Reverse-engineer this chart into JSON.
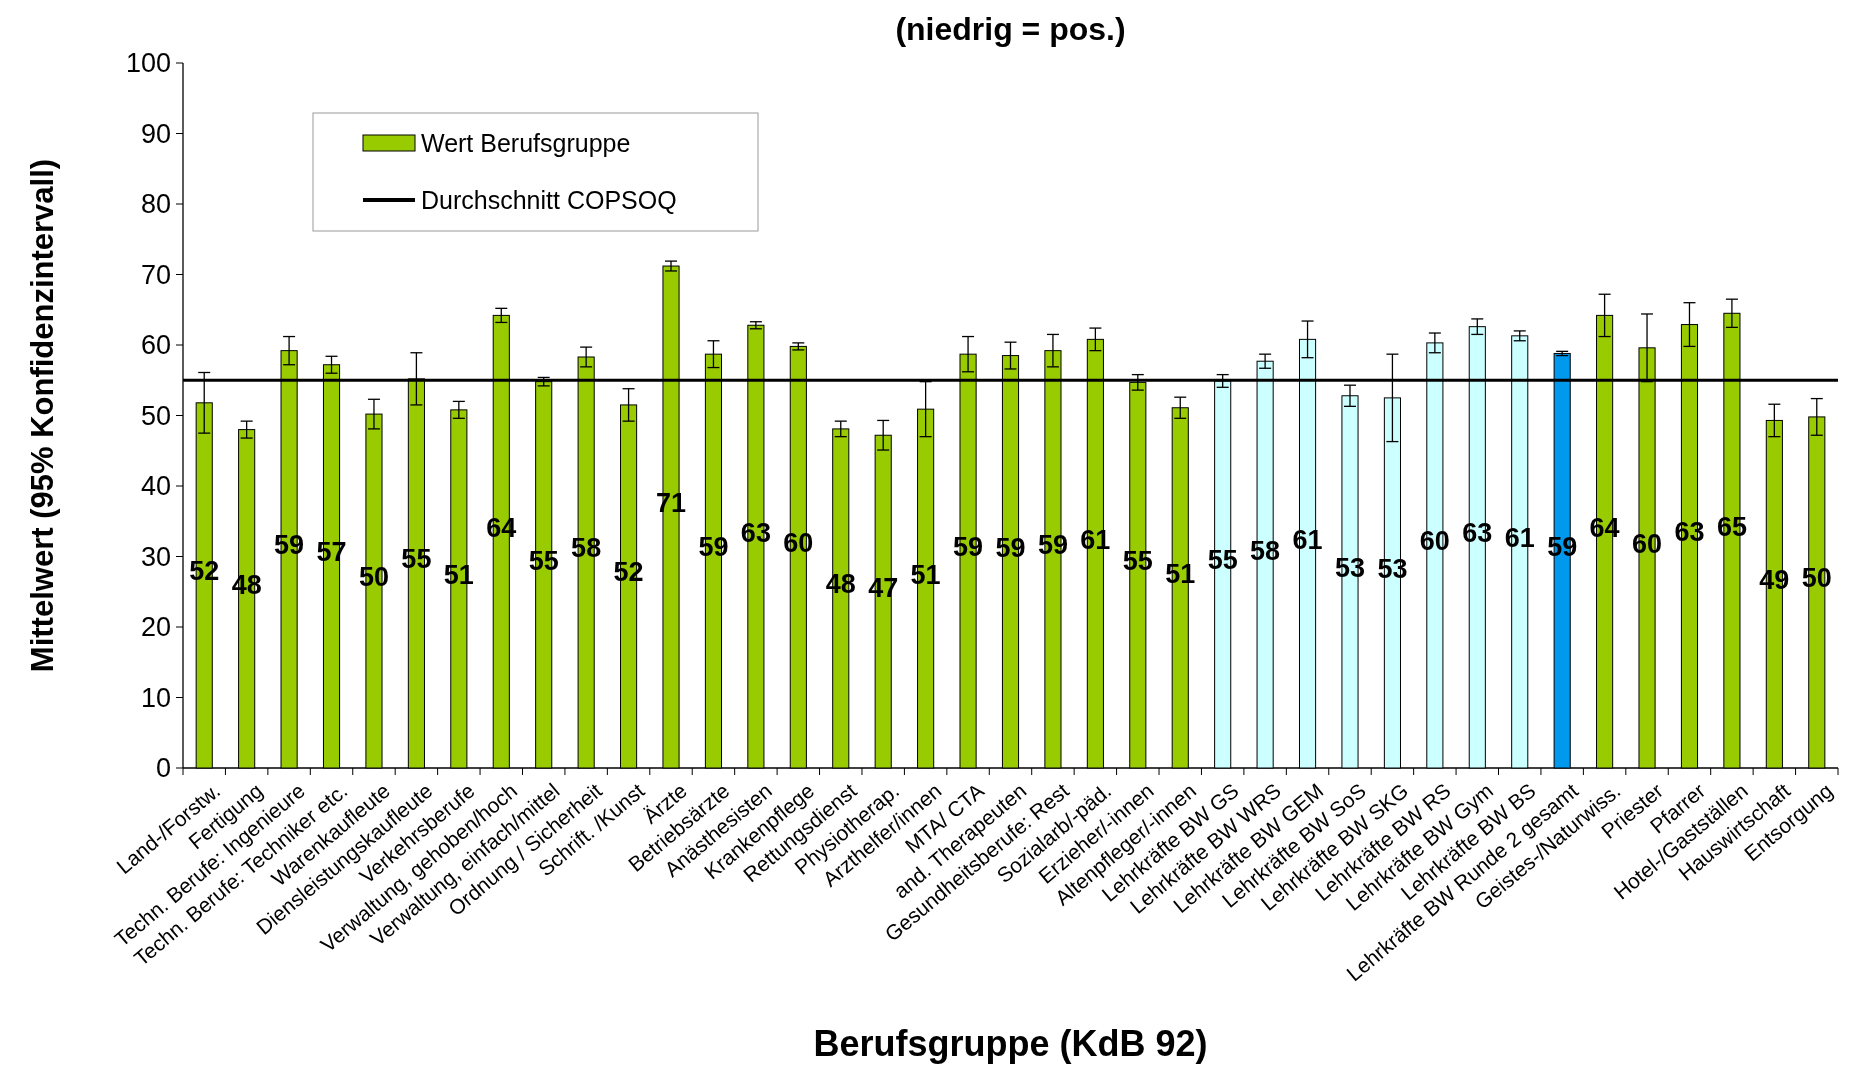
{
  "chart_data": {
    "type": "bar",
    "title": "(niedrig = pos.)",
    "xlabel": "Berufsgruppe (KdB 92)",
    "ylabel": "Mittelwert (95% Konfidenzintervall)",
    "categories": [
      "Land-/Forstw.",
      "Fertigung",
      "Techn. Berufe: Ingenieure",
      "Techn. Berufe: Techniker etc.",
      "Warenkaufleute",
      "Diensleistungskaufleute",
      "Verkehrsberufe",
      "Verwaltung, gehoben/hoch",
      "Verwaltung, einfach/mittel",
      "Ordnung / Sicherheit",
      "Schrift. /Kunst",
      "Ärzte",
      "Betriebsärzte",
      "Anästhesisten",
      "Krankenpflege",
      "Rettungsdienst",
      "Physiotherap.",
      "Arzthelfer/innen",
      "MTA/ CTA",
      "and. Therapeuten",
      "Gesundheitsberufe: Rest",
      "Sozialarb/-päd.",
      "Erzieher/-innen",
      "Altenpfleger/-innen",
      "Lehrkräfte BW GS",
      "Lehrkräfte BW WRS",
      "Lehrkräfte BW GEM",
      "Lehrkräfte BW SoS",
      "Lehrkräfte BW SKG",
      "Lehrkräfte BW RS",
      "Lehrkräfte BW Gym",
      "Lehrkräfte BW BS",
      "Lehrkräfte BW Runde 2 gesamt",
      "Geistes-/Naturwiss.",
      "Priester",
      "Pfarrer",
      "Hotel-/Gastställen",
      "Hauswirtschaft",
      "Entsorgung"
    ],
    "series": [
      {
        "name": "Wert Berufsgruppe",
        "color": "#99cc00",
        "colors": [
          "#99cc00",
          "#99cc00",
          "#99cc00",
          "#99cc00",
          "#99cc00",
          "#99cc00",
          "#99cc00",
          "#99cc00",
          "#99cc00",
          "#99cc00",
          "#99cc00",
          "#99cc00",
          "#99cc00",
          "#99cc00",
          "#99cc00",
          "#99cc00",
          "#99cc00",
          "#99cc00",
          "#99cc00",
          "#99cc00",
          "#99cc00",
          "#99cc00",
          "#99cc00",
          "#99cc00",
          "#ccffff",
          "#ccffff",
          "#ccffff",
          "#ccffff",
          "#ccffff",
          "#ccffff",
          "#ccffff",
          "#ccffff",
          "#0099ee",
          "#99cc00",
          "#99cc00",
          "#99cc00",
          "#99cc00",
          "#99cc00",
          "#99cc00"
        ],
        "values": [
          51.8,
          48.0,
          59.2,
          57.2,
          50.2,
          55.2,
          50.8,
          64.2,
          54.8,
          58.3,
          51.5,
          71.2,
          58.7,
          62.8,
          59.8,
          48.1,
          47.2,
          50.9,
          58.7,
          58.5,
          59.2,
          60.8,
          54.7,
          51.1,
          54.9,
          57.7,
          60.8,
          52.8,
          52.5,
          60.3,
          62.6,
          61.3,
          58.8,
          64.2,
          59.6,
          62.9,
          64.5,
          49.3,
          49.8
        ],
        "errors": [
          4.3,
          1.2,
          2.0,
          1.2,
          2.1,
          3.7,
          1.2,
          1.0,
          0.6,
          1.4,
          2.3,
          0.7,
          1.9,
          0.5,
          0.5,
          1.1,
          2.1,
          3.9,
          2.5,
          1.9,
          2.3,
          1.6,
          1.1,
          1.5,
          0.9,
          1.0,
          2.6,
          1.5,
          6.2,
          1.4,
          1.1,
          0.7,
          0.3,
          3.0,
          4.8,
          3.1,
          2.0,
          2.3,
          2.6
        ],
        "value_labels": [
          "52",
          "48",
          "59",
          "57",
          "50",
          "55",
          "51",
          "64",
          "55",
          "58",
          "52",
          "71",
          "59",
          "63",
          "60",
          "48",
          "47",
          "51",
          "59",
          "59",
          "59",
          "61",
          "55",
          "51",
          "55",
          "58",
          "61",
          "53",
          "53",
          "60",
          "63",
          "61",
          "59",
          "64",
          "60",
          "63",
          "65",
          "49",
          "50"
        ]
      }
    ],
    "ref_lines": [
      {
        "axis": "y",
        "value": 55,
        "label": "Durchschnitt COPSOQ",
        "color": "#000000"
      }
    ],
    "ylim": [
      0,
      100
    ],
    "yticks": [
      0,
      10,
      20,
      30,
      40,
      50,
      60,
      70,
      80,
      90,
      100
    ],
    "legend": "top left"
  }
}
